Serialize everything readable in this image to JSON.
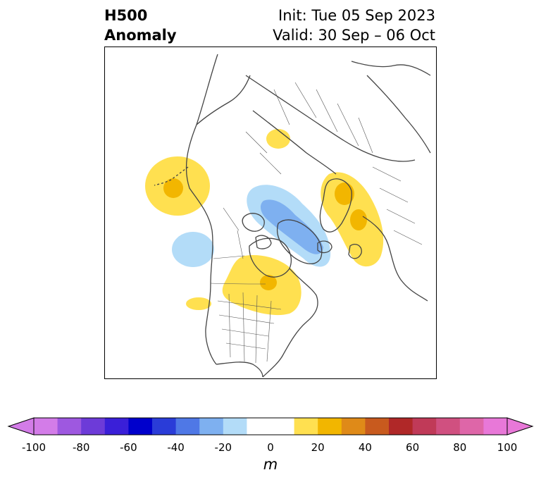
{
  "title": {
    "line1": "H500",
    "line2": "Anomaly"
  },
  "subtitle": {
    "init": "Init: Tue 05 Sep 2023",
    "valid": "Valid: 30 Sep – 06 Oct"
  },
  "map": {
    "projection": "north-polar-stereographic",
    "region": "North America / Arctic / Northern Europe",
    "anomalies": [
      {
        "id": "gulf-of-alaska-ridge",
        "sign": "positive",
        "peak_m": 25
      },
      {
        "id": "northern-europe-ridge",
        "sign": "positive",
        "peak_m": 25
      },
      {
        "id": "central-canada-ridge",
        "sign": "positive",
        "peak_m": 25
      },
      {
        "id": "northern-siberia-ridge",
        "sign": "positive",
        "peak_m": 15
      },
      {
        "id": "greenland-trough",
        "sign": "negative",
        "peak_m": -25
      },
      {
        "id": "pacific-northwest-trough",
        "sign": "negative",
        "peak_m": -15
      }
    ]
  },
  "colorbar": {
    "ticks": [
      "-100",
      "-80",
      "-60",
      "-40",
      "-20",
      "0",
      "20",
      "40",
      "60",
      "80",
      "100"
    ],
    "units": "m",
    "range": [
      -100,
      100
    ],
    "step": 10,
    "colors": [
      "#d37ce8",
      "#9e58e0",
      "#6d3bd8",
      "#3a1fd8",
      "#0000cc",
      "#2a3cd8",
      "#4f78e6",
      "#7eb0f0",
      "#b3dcf8",
      "#ffffff",
      "#ffffff",
      "#ffe050",
      "#f2b600",
      "#df8a18",
      "#c85a1e",
      "#b02828",
      "#c03a58",
      "#d05080",
      "#de66a8",
      "#e878d8"
    ],
    "under_color": "#d37ce8",
    "over_color": "#e878d8"
  }
}
